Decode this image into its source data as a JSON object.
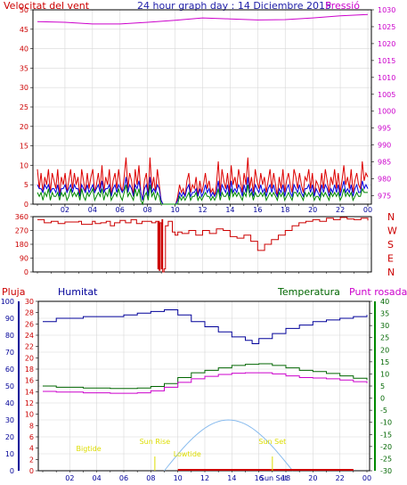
{
  "header": {
    "left_label": "Velocitat del vent",
    "title": "24 hour graph day : 14 Diciembre 2015",
    "right_label": "Pressió"
  },
  "labels": {
    "pluja": "Pluja",
    "humitat": "Humitat",
    "temperatura": "Temperatura",
    "punt_rosada": "Punt rosada"
  },
  "colors": {
    "wind_speed": "#dd0000",
    "wind_avg": "#0000dd",
    "wind_gust_avg": "#008800",
    "pressure": "#cc00cc",
    "direction": "#cc0000",
    "humidity": "#000099",
    "temperature": "#006600",
    "dewpoint": "#cc00cc",
    "sun_arc": "#88bbee",
    "astro": "#dddd00",
    "rain": "#cc0000",
    "grid": "#d8d8d8"
  },
  "chart_data": [
    {
      "id": "wind_pressure",
      "type": "line",
      "x_ticks": [
        "02",
        "04",
        "06",
        "08",
        "10",
        "12",
        "14",
        "16",
        "18",
        "20",
        "22",
        "00"
      ],
      "ylabel": "Velocitat del vent",
      "y2label": "Pressió",
      "ylim": [
        0,
        50
      ],
      "y_ticks": [
        0,
        5,
        10,
        15,
        20,
        25,
        30,
        35,
        40,
        45,
        50
      ],
      "y2lim": [
        972.5,
        1030
      ],
      "y2_ticks": [
        975,
        980,
        985,
        990,
        995,
        1000,
        1005,
        1010,
        1015,
        1020,
        1025,
        1030
      ],
      "series": [
        {
          "axis": "right",
          "color_key": "pressure",
          "x": [
            0,
            2,
            4,
            6,
            8,
            10,
            12,
            14,
            16,
            18,
            20,
            22,
            24
          ],
          "values": [
            1026.5,
            1026.3,
            1025.8,
            1025.8,
            1026.3,
            1026.9,
            1027.6,
            1027.3,
            1027.0,
            1027.1,
            1027.6,
            1028.2,
            1028.6
          ]
        },
        {
          "axis": "left",
          "color_key": "wind_speed",
          "x_end": 24,
          "values": [
            9,
            4,
            8,
            3,
            7,
            5,
            9,
            3,
            8,
            6,
            4,
            9,
            2,
            7,
            5,
            8,
            3,
            6,
            9,
            4,
            8,
            5,
            7,
            2,
            9,
            6,
            3,
            8,
            4,
            7,
            9,
            3,
            5,
            8,
            4,
            10,
            3,
            7,
            5,
            9,
            2,
            6,
            8,
            4,
            9,
            5,
            3,
            7,
            12,
            4,
            8,
            6,
            2,
            9,
            5,
            10,
            3,
            1,
            6,
            8,
            2,
            12,
            4,
            7,
            3,
            9,
            5,
            1,
            0,
            0,
            0,
            0,
            0,
            0,
            0,
            0,
            2,
            5,
            3,
            4,
            2,
            6,
            8,
            3,
            5,
            4,
            7,
            2,
            6,
            3,
            5,
            8,
            4,
            6,
            3,
            4,
            2,
            5,
            11,
            3,
            9,
            6,
            4,
            8,
            3,
            10,
            5,
            7,
            4,
            9,
            6,
            3,
            8,
            5,
            12,
            4,
            7,
            3,
            9,
            6,
            4,
            8,
            5,
            7,
            3,
            6,
            9,
            4,
            8,
            5,
            2,
            7,
            4,
            9,
            3,
            6,
            8,
            5,
            3,
            9,
            7,
            4,
            8,
            5,
            3,
            7,
            6,
            9,
            4,
            8,
            2,
            6,
            5,
            3,
            8,
            4,
            9,
            6,
            3,
            7,
            5,
            9,
            4,
            8,
            3,
            6,
            10,
            5,
            7,
            4,
            9,
            3,
            6,
            8,
            5,
            4,
            11,
            6,
            8,
            7
          ]
        },
        {
          "axis": "left",
          "color_key": "wind_avg",
          "x_end": 24,
          "values": [
            5,
            4,
            4,
            3,
            5,
            4,
            5,
            3,
            4,
            4,
            3,
            5,
            2,
            4,
            4,
            5,
            3,
            4,
            5,
            3,
            5,
            4,
            4,
            2,
            5,
            4,
            3,
            5,
            3,
            4,
            5,
            3,
            4,
            5,
            3,
            6,
            3,
            4,
            4,
            5,
            2,
            4,
            5,
            3,
            5,
            4,
            3,
            4,
            7,
            3,
            5,
            4,
            2,
            5,
            4,
            6,
            3,
            1,
            4,
            5,
            2,
            7,
            3,
            4,
            3,
            5,
            4,
            1,
            0,
            0,
            0,
            0,
            0,
            0,
            0,
            0,
            1,
            3,
            2,
            3,
            2,
            4,
            5,
            2,
            3,
            3,
            4,
            2,
            4,
            2,
            3,
            5,
            3,
            4,
            2,
            3,
            2,
            3,
            6,
            2,
            5,
            4,
            3,
            5,
            2,
            6,
            3,
            4,
            3,
            5,
            4,
            2,
            5,
            3,
            7,
            3,
            4,
            2,
            5,
            4,
            3,
            5,
            3,
            4,
            2,
            4,
            5,
            3,
            5,
            3,
            2,
            4,
            3,
            5,
            2,
            4,
            5,
            3,
            2,
            5,
            4,
            3,
            5,
            3,
            2,
            4,
            4,
            5,
            3,
            5,
            2,
            4,
            3,
            2,
            5,
            3,
            5,
            4,
            2,
            4,
            3,
            5,
            3,
            5,
            2,
            4,
            6,
            3,
            4,
            3,
            5,
            2,
            4,
            5,
            3,
            3,
            6,
            4,
            5,
            4
          ]
        },
        {
          "axis": "left",
          "color_key": "wind_gust_avg",
          "x_end": 24,
          "values": [
            3,
            2,
            3,
            1,
            3,
            2,
            4,
            1,
            3,
            2,
            2,
            3,
            1,
            3,
            2,
            3,
            1,
            2,
            4,
            2,
            3,
            2,
            3,
            1,
            4,
            2,
            1,
            3,
            2,
            3,
            4,
            1,
            2,
            3,
            2,
            4,
            1,
            3,
            2,
            4,
            1,
            2,
            3,
            2,
            4,
            2,
            1,
            3,
            5,
            2,
            3,
            2,
            1,
            4,
            2,
            4,
            1,
            0,
            2,
            3,
            1,
            5,
            2,
            3,
            1,
            3,
            2,
            0,
            0,
            0,
            0,
            0,
            0,
            0,
            0,
            0,
            0,
            2,
            1,
            2,
            1,
            2,
            3,
            1,
            2,
            2,
            3,
            1,
            2,
            1,
            2,
            3,
            2,
            2,
            1,
            2,
            1,
            2,
            4,
            1,
            3,
            2,
            2,
            3,
            1,
            4,
            2,
            3,
            2,
            3,
            2,
            1,
            3,
            2,
            5,
            2,
            3,
            1,
            3,
            2,
            2,
            3,
            2,
            3,
            1,
            2,
            3,
            2,
            3,
            2,
            1,
            3,
            2,
            3,
            1,
            2,
            3,
            2,
            1,
            3,
            3,
            2,
            3,
            2,
            1,
            3,
            2,
            3,
            2,
            3,
            1,
            2,
            2,
            1,
            3,
            2,
            3,
            2,
            1,
            3,
            2,
            3,
            2,
            3,
            1,
            2,
            4,
            2,
            3,
            2,
            3,
            1,
            2,
            3,
            2,
            2,
            4,
            3,
            3,
            3
          ]
        }
      ]
    },
    {
      "id": "wind_direction",
      "type": "line",
      "ylim": [
        0,
        360
      ],
      "y_ticks": [
        0,
        90,
        180,
        270,
        360
      ],
      "compass_labels": [
        "N",
        "W",
        "S",
        "E",
        "N"
      ],
      "series": [
        {
          "color_key": "direction",
          "x": [
            0,
            0.5,
            1,
            1.5,
            2,
            3,
            3.2,
            4,
            4.2,
            4.6,
            5,
            5.3,
            5.6,
            6,
            6.4,
            6.8,
            7.2,
            7.6,
            8,
            8.3,
            8.6,
            8.75,
            8.8,
            8.85,
            8.9,
            9.0,
            9.05,
            9.1,
            9.2,
            9.3,
            9.5,
            9.8,
            10.0,
            10.2,
            10.5,
            11,
            11.5,
            12,
            12.5,
            13,
            13.5,
            14,
            14.5,
            15,
            15.5,
            16,
            16.5,
            17,
            17.5,
            18,
            18.5,
            19,
            19.5,
            20,
            20.5,
            21,
            21.5,
            22,
            22.5,
            23,
            23.5,
            24
          ],
          "values": [
            340,
            320,
            330,
            315,
            325,
            330,
            310,
            330,
            315,
            320,
            330,
            300,
            320,
            335,
            320,
            340,
            315,
            330,
            330,
            320,
            330,
            20,
            330,
            10,
            320,
            20,
            340,
            0,
            20,
            300,
            330,
            260,
            240,
            260,
            250,
            270,
            240,
            270,
            250,
            280,
            270,
            230,
            220,
            240,
            200,
            140,
            180,
            210,
            240,
            270,
            300,
            320,
            330,
            340,
            330,
            350,
            340,
            355,
            345,
            340,
            350,
            335
          ]
        }
      ]
    },
    {
      "id": "humidity_temperature",
      "type": "line",
      "x_ticks": [
        "02",
        "04",
        "06",
        "08",
        "10",
        "12",
        "14",
        "16",
        "18",
        "20",
        "22",
        "00"
      ],
      "y_humidity_ticks": [
        0,
        10,
        20,
        30,
        40,
        50,
        60,
        70,
        80,
        90,
        100
      ],
      "y_humidity_lim": [
        0,
        100
      ],
      "y_rain_ticks": [
        0,
        2,
        4,
        6,
        8,
        10,
        12,
        14,
        16,
        18,
        20,
        22,
        24,
        26,
        28,
        30
      ],
      "y_rain_lim": [
        0,
        30
      ],
      "y_temp_ticks": [
        -30,
        -25,
        -20,
        -15,
        -10,
        -5,
        0,
        5,
        10,
        15,
        20,
        25,
        30,
        35,
        40
      ],
      "y_temp_lim": [
        -30,
        40
      ],
      "series": [
        {
          "name": "Humitat",
          "axis": "humidity",
          "color_key": "humidity",
          "x": [
            0,
            1,
            2,
            3,
            4,
            5,
            6,
            7,
            8,
            9,
            10,
            11,
            12,
            13,
            14,
            15,
            15.5,
            16,
            17,
            18,
            19,
            20,
            21,
            22,
            23,
            24
          ],
          "values": [
            88,
            90,
            90,
            91,
            91,
            91,
            92,
            93,
            94,
            95,
            92,
            88,
            85,
            82,
            79,
            77,
            75,
            78,
            81,
            84,
            86,
            88,
            89,
            90,
            91,
            92
          ]
        },
        {
          "name": "Temperatura",
          "axis": "temp",
          "color_key": "temperature",
          "x": [
            0,
            1,
            2,
            3,
            4,
            5,
            6,
            7,
            8,
            9,
            10,
            11,
            12,
            13,
            14,
            15,
            16,
            17,
            18,
            19,
            20,
            21,
            22,
            23,
            24
          ],
          "values": [
            5,
            4.5,
            4.5,
            4.2,
            4.2,
            4,
            4,
            4.2,
            4.8,
            6,
            8.5,
            10.5,
            11.5,
            12.5,
            13.5,
            14,
            14.2,
            13.5,
            12.5,
            11.5,
            11,
            10.2,
            9.2,
            8.2,
            7.5
          ]
        },
        {
          "name": "Punt rosada",
          "axis": "temp",
          "color_key": "dewpoint",
          "x": [
            0,
            1,
            2,
            3,
            4,
            5,
            6,
            7,
            8,
            9,
            10,
            11,
            12,
            13,
            14,
            15,
            16,
            17,
            18,
            19,
            20,
            21,
            22,
            23,
            24
          ],
          "values": [
            2.8,
            2.5,
            2.5,
            2.2,
            2.2,
            2,
            2,
            2.2,
            3,
            4.5,
            6.5,
            8,
            9,
            9.8,
            10.3,
            10.5,
            10.5,
            10,
            9.2,
            8.5,
            8.3,
            8,
            7.5,
            6.8,
            6.2
          ]
        }
      ],
      "sun_arc": {
        "start": 9.0,
        "peak": 14.0,
        "end": 18.5,
        "peak_rain_units": 9
      },
      "astro": {
        "bigtide": {
          "label": "Bigtide",
          "x": 3.4
        },
        "sun_rise": {
          "label": "Sun Rise",
          "x": 8.3
        },
        "lowtide": {
          "label": "Lowtide",
          "x": 10.7
        },
        "sun_set": {
          "label": "Sun Set",
          "x": 17.0
        },
        "bottom_marker": "Sun Set"
      },
      "rain": {
        "start": 10.0,
        "end": 23.0,
        "value": 0
      }
    }
  ]
}
